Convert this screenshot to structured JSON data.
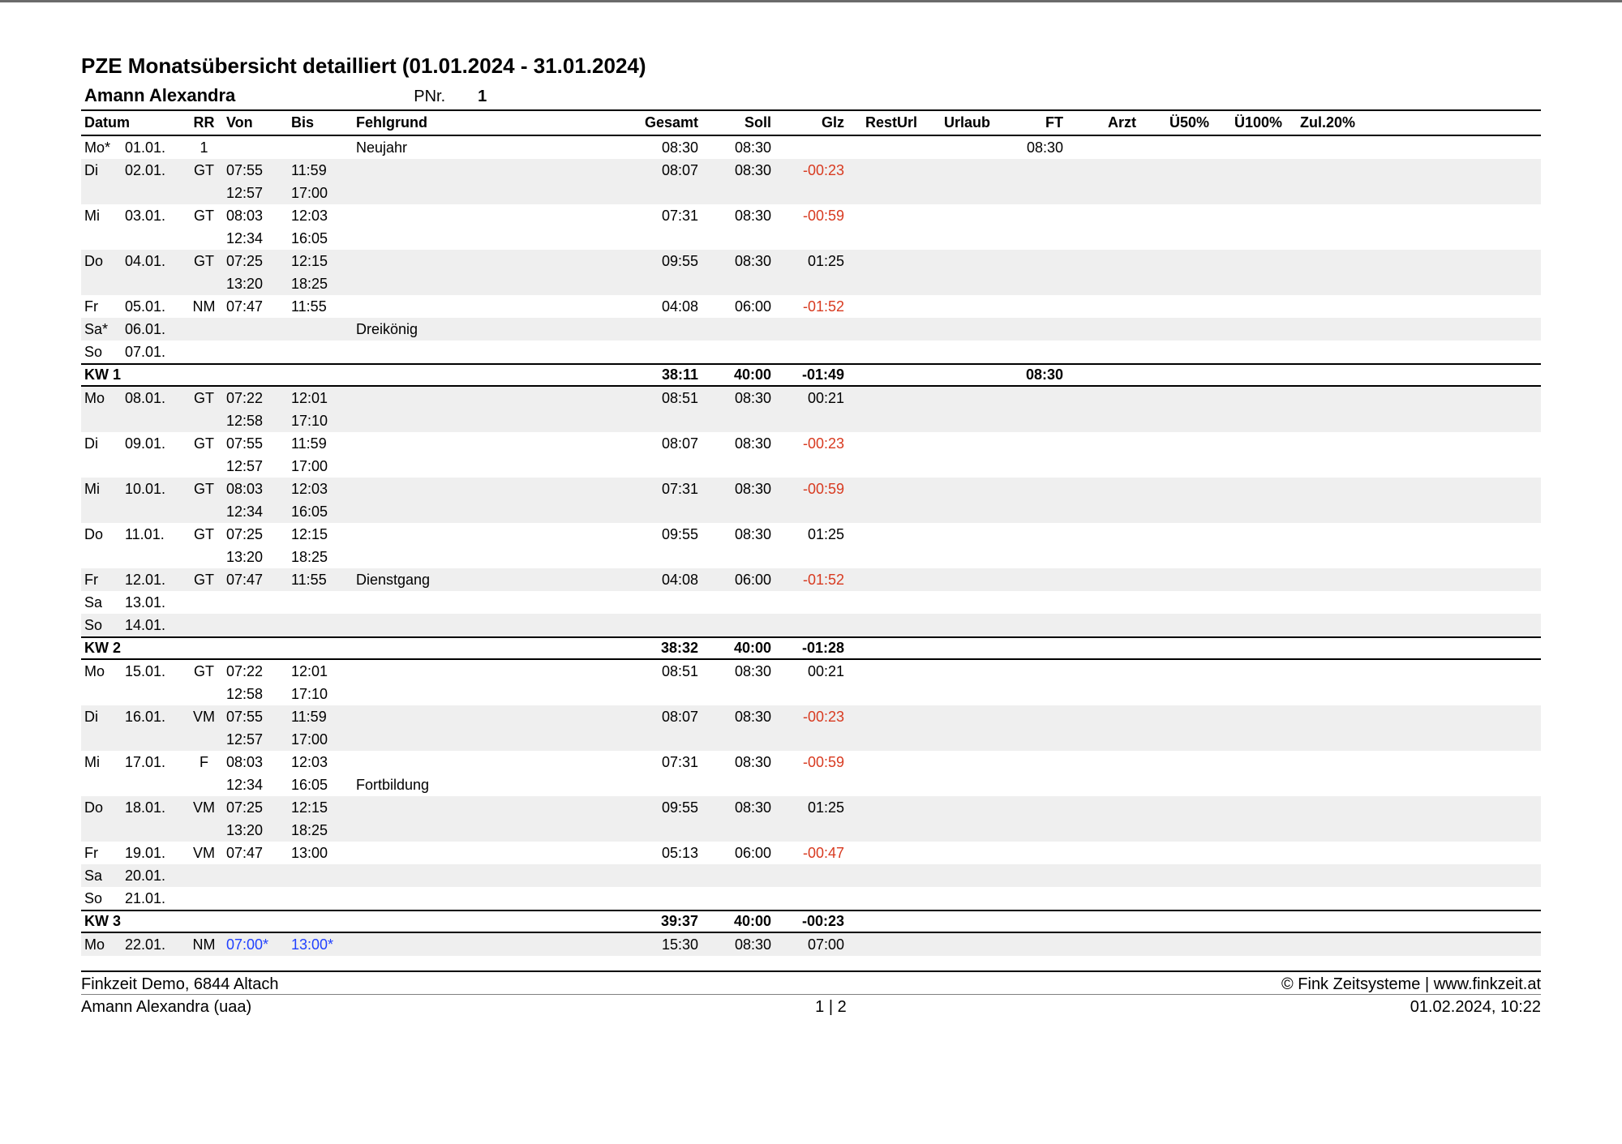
{
  "report": {
    "title": "PZE Monatsübersicht detailliert (01.01.2024 - 31.01.2024)",
    "employee_name": "Amann Alexandra",
    "pnr_label": "PNr.",
    "pnr_value": "1"
  },
  "columns": {
    "datum": "Datum",
    "rr": "RR",
    "von": "Von",
    "bis": "Bis",
    "fehlgrund": "Fehlgrund",
    "gesamt": "Gesamt",
    "soll": "Soll",
    "glz": "Glz",
    "resturl": "RestUrl",
    "urlaub": "Urlaub",
    "ft": "FT",
    "arzt": "Arzt",
    "u50": "Ü50%",
    "u100": "Ü100%",
    "zul20": "Zul.20%"
  },
  "rows": [
    {
      "type": "day",
      "day": "Mo*",
      "date": "01.01.",
      "rr": "1",
      "von": "",
      "bis": "",
      "fehl": "Neujahr",
      "gesamt": "08:30",
      "soll": "08:30",
      "glz": "",
      "ft": "08:30"
    },
    {
      "type": "day",
      "alt": true,
      "day": "Di",
      "date": "02.01.",
      "rr": "GT",
      "von": "07:55",
      "bis": "11:59",
      "fehl": "",
      "gesamt": "08:07",
      "soll": "08:30",
      "glz": "-00:23",
      "glz_neg": true
    },
    {
      "type": "sub",
      "alt": true,
      "von": "12:57",
      "bis": "17:00"
    },
    {
      "type": "day",
      "day": "Mi",
      "date": "03.01.",
      "rr": "GT",
      "von": "08:03",
      "bis": "12:03",
      "fehl": "",
      "gesamt": "07:31",
      "soll": "08:30",
      "glz": "-00:59",
      "glz_neg": true
    },
    {
      "type": "sub",
      "von": "12:34",
      "bis": "16:05"
    },
    {
      "type": "day",
      "alt": true,
      "day": "Do",
      "date": "04.01.",
      "rr": "GT",
      "von": "07:25",
      "bis": "12:15",
      "fehl": "",
      "gesamt": "09:55",
      "soll": "08:30",
      "glz": "01:25"
    },
    {
      "type": "sub",
      "alt": true,
      "von": "13:20",
      "bis": "18:25"
    },
    {
      "type": "day",
      "day": "Fr",
      "date": "05.01.",
      "rr": "NM",
      "von": "07:47",
      "bis": "11:55",
      "fehl": "",
      "gesamt": "04:08",
      "soll": "06:00",
      "glz": "-01:52",
      "glz_neg": true
    },
    {
      "type": "day",
      "alt": true,
      "day": "Sa*",
      "date": "06.01.",
      "fehl": "Dreikönig"
    },
    {
      "type": "day",
      "day": "So",
      "date": "07.01."
    },
    {
      "type": "sum",
      "label": "KW 1",
      "gesamt": "38:11",
      "soll": "40:00",
      "glz": "-01:49",
      "ft": "08:30"
    },
    {
      "type": "day",
      "alt": true,
      "day": "Mo",
      "date": "08.01.",
      "rr": "GT",
      "von": "07:22",
      "bis": "12:01",
      "gesamt": "08:51",
      "soll": "08:30",
      "glz": "00:21"
    },
    {
      "type": "sub",
      "alt": true,
      "von": "12:58",
      "bis": "17:10"
    },
    {
      "type": "day",
      "day": "Di",
      "date": "09.01.",
      "rr": "GT",
      "von": "07:55",
      "bis": "11:59",
      "gesamt": "08:07",
      "soll": "08:30",
      "glz": "-00:23",
      "glz_neg": true
    },
    {
      "type": "sub",
      "von": "12:57",
      "bis": "17:00"
    },
    {
      "type": "day",
      "alt": true,
      "day": "Mi",
      "date": "10.01.",
      "rr": "GT",
      "von": "08:03",
      "bis": "12:03",
      "gesamt": "07:31",
      "soll": "08:30",
      "glz": "-00:59",
      "glz_neg": true
    },
    {
      "type": "sub",
      "alt": true,
      "von": "12:34",
      "bis": "16:05"
    },
    {
      "type": "day",
      "day": "Do",
      "date": "11.01.",
      "rr": "GT",
      "von": "07:25",
      "bis": "12:15",
      "gesamt": "09:55",
      "soll": "08:30",
      "glz": "01:25"
    },
    {
      "type": "sub",
      "von": "13:20",
      "bis": "18:25"
    },
    {
      "type": "day",
      "alt": true,
      "day": "Fr",
      "date": "12.01.",
      "rr": "GT",
      "von": "07:47",
      "bis": "11:55",
      "fehl": "Dienstgang",
      "gesamt": "04:08",
      "soll": "06:00",
      "glz": "-01:52",
      "glz_neg": true
    },
    {
      "type": "day",
      "day": "Sa",
      "date": "13.01."
    },
    {
      "type": "day",
      "alt": true,
      "day": "So",
      "date": "14.01."
    },
    {
      "type": "sum",
      "label": "KW 2",
      "gesamt": "38:32",
      "soll": "40:00",
      "glz": "-01:28"
    },
    {
      "type": "day",
      "day": "Mo",
      "date": "15.01.",
      "rr": "GT",
      "von": "07:22",
      "bis": "12:01",
      "gesamt": "08:51",
      "soll": "08:30",
      "glz": "00:21"
    },
    {
      "type": "sub",
      "von": "12:58",
      "bis": "17:10"
    },
    {
      "type": "day",
      "alt": true,
      "day": "Di",
      "date": "16.01.",
      "rr": "VM",
      "von": "07:55",
      "bis": "11:59",
      "gesamt": "08:07",
      "soll": "08:30",
      "glz": "-00:23",
      "glz_neg": true
    },
    {
      "type": "sub",
      "alt": true,
      "von": "12:57",
      "bis": "17:00"
    },
    {
      "type": "day",
      "day": "Mi",
      "date": "17.01.",
      "rr": "F",
      "von": "08:03",
      "bis": "12:03",
      "gesamt": "07:31",
      "soll": "08:30",
      "glz": "-00:59",
      "glz_neg": true
    },
    {
      "type": "sub",
      "von": "12:34",
      "bis": "16:05",
      "fehl": "Fortbildung"
    },
    {
      "type": "day",
      "alt": true,
      "day": "Do",
      "date": "18.01.",
      "rr": "VM",
      "von": "07:25",
      "bis": "12:15",
      "gesamt": "09:55",
      "soll": "08:30",
      "glz": "01:25"
    },
    {
      "type": "sub",
      "alt": true,
      "von": "13:20",
      "bis": "18:25"
    },
    {
      "type": "day",
      "day": "Fr",
      "date": "19.01.",
      "rr": "VM",
      "von": "07:47",
      "bis": "13:00",
      "gesamt": "05:13",
      "soll": "06:00",
      "glz": "-00:47",
      "glz_neg": true
    },
    {
      "type": "day",
      "alt": true,
      "day": "Sa",
      "date": "20.01."
    },
    {
      "type": "day",
      "day": "So",
      "date": "21.01."
    },
    {
      "type": "sum",
      "label": "KW 3",
      "gesamt": "39:37",
      "soll": "40:00",
      "glz": "-00:23"
    },
    {
      "type": "day",
      "alt": true,
      "day": "Mo",
      "date": "22.01.",
      "rr": "NM",
      "von": "07:00*",
      "bis": "13:00*",
      "blue": true,
      "gesamt": "15:30",
      "soll": "08:30",
      "glz": "07:00"
    }
  ],
  "footer": {
    "company": "Finkzeit Demo, 6844 Altach",
    "copyright": "© Fink Zeitsysteme | www.finkzeit.at",
    "user": "Amann Alexandra (uaa)",
    "page": "1  |  2",
    "timestamp": "01.02.2024, 10:22"
  }
}
